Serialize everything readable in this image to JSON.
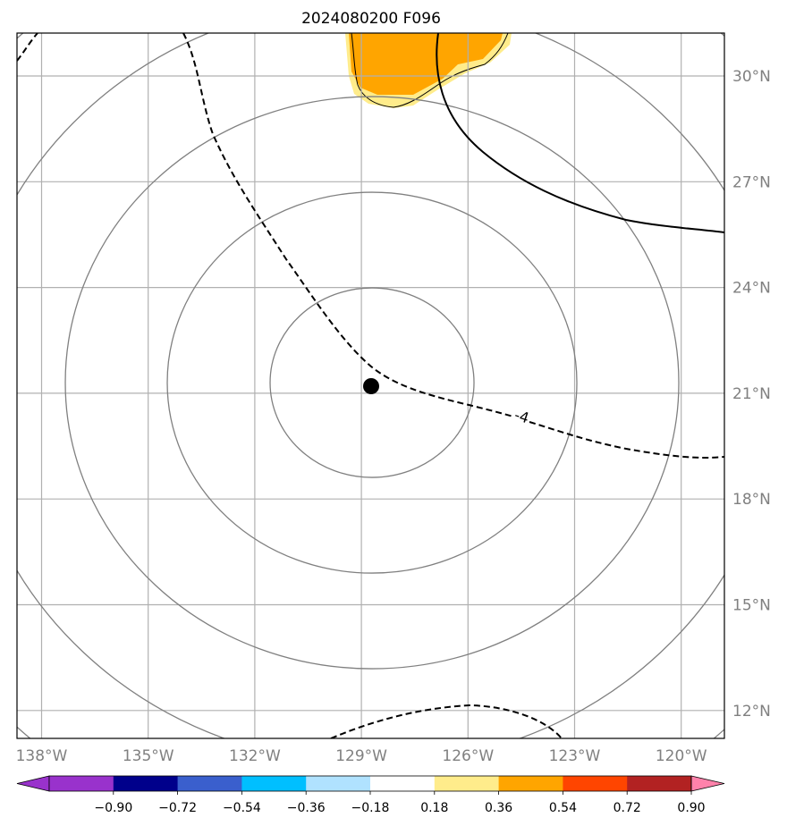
{
  "map": {
    "title": "2024080200 F096",
    "center_marker": {
      "lon": -128.7,
      "lat": 21.3
    },
    "lon_ticks": [
      {
        "lon": -138,
        "label": "138°W"
      },
      {
        "lon": -135,
        "label": "135°W"
      },
      {
        "lon": -132,
        "label": "132°W"
      },
      {
        "lon": -129,
        "label": "129°W"
      },
      {
        "lon": -126,
        "label": "126°W"
      },
      {
        "lon": -123,
        "label": "123°W"
      },
      {
        "lon": -120,
        "label": "120°W"
      }
    ],
    "lat_ticks": [
      {
        "lat": 30,
        "label": "30°N"
      },
      {
        "lat": 27,
        "label": "27°N"
      },
      {
        "lat": 24,
        "label": "24°N"
      },
      {
        "lat": 21,
        "label": "21°N"
      },
      {
        "lat": 18,
        "label": "18°N"
      },
      {
        "lat": 15,
        "label": "15°N"
      },
      {
        "lat": 12,
        "label": "12°N"
      }
    ],
    "contour_label": "-4",
    "colorbar": {
      "colors": [
        "#9932cc",
        "#00008b",
        "#3a5fcd",
        "#00bfff",
        "#b0e2ff",
        "#ffffff",
        "#ffec8b",
        "#ffa500",
        "#ff4500",
        "#b22222",
        "#ff82ab"
      ],
      "labels": [
        "−0.90",
        "−0.72",
        "−0.54",
        "−0.36",
        "−0.18",
        "0.18",
        "0.36",
        "0.54",
        "0.72",
        "0.90"
      ]
    },
    "colors": {
      "grid": "#b0b0b0",
      "range_rings": "#808080",
      "shade_orange": "#ffa500",
      "shade_yellow": "#ffec8b"
    }
  }
}
